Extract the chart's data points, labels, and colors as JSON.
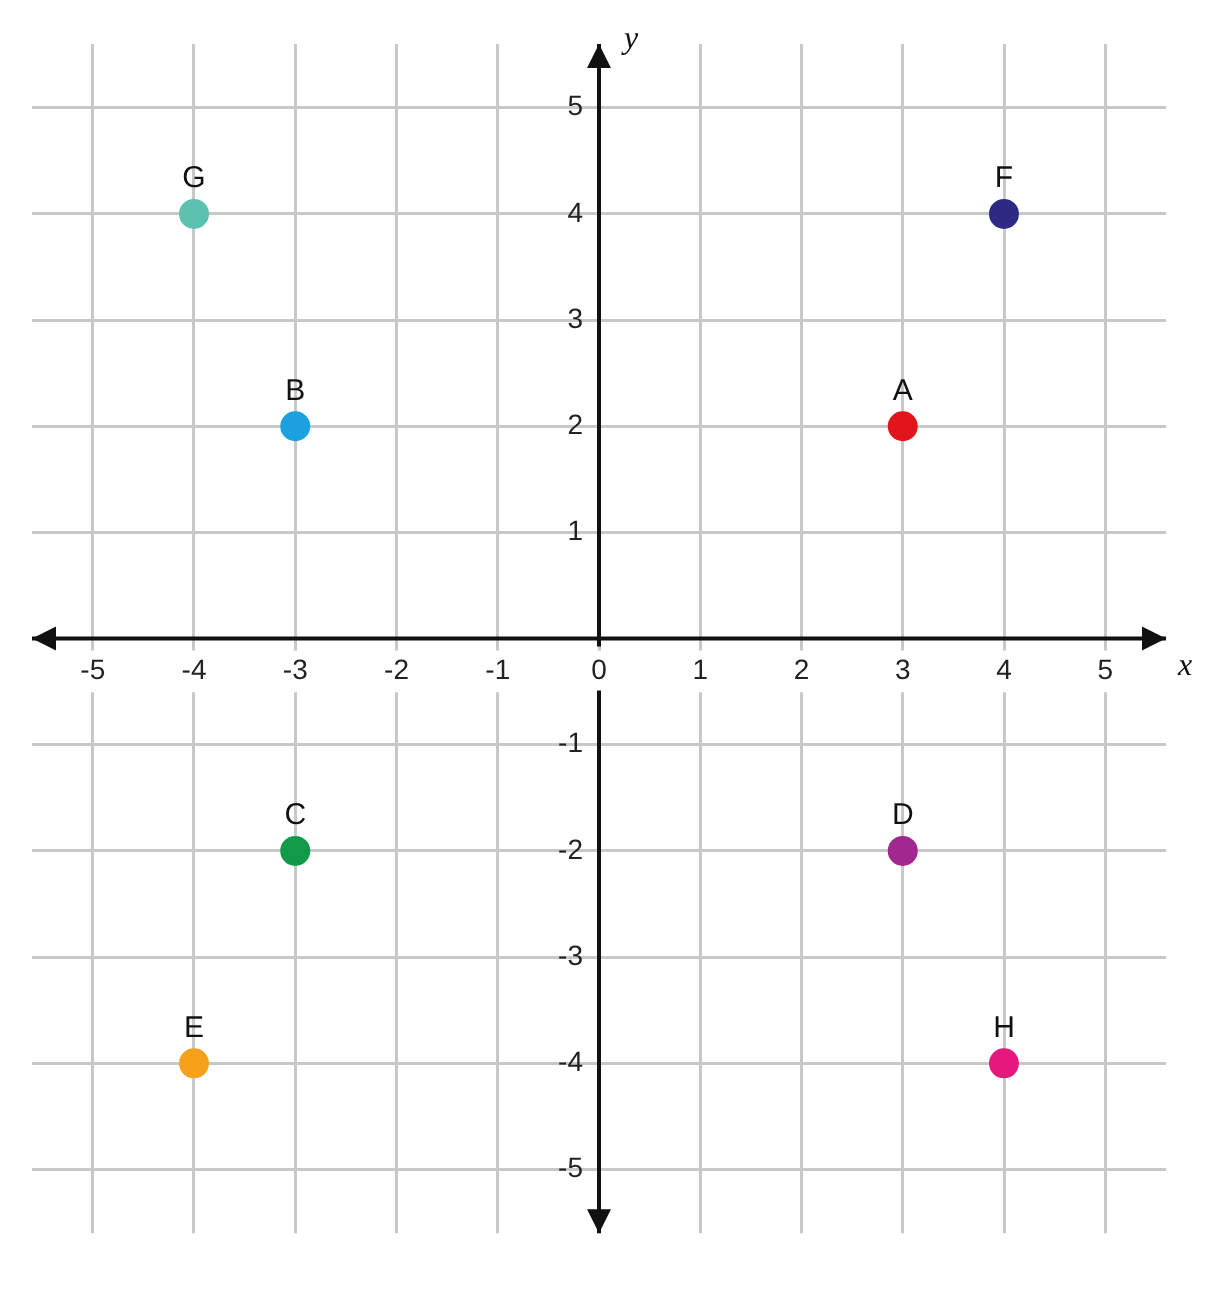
{
  "chart_data": {
    "type": "scatter",
    "xlabel": "x",
    "ylabel": "y",
    "x": [
      3,
      -3,
      -3,
      3,
      -4,
      4,
      -4,
      4
    ],
    "values": [
      2,
      2,
      -2,
      -2,
      -4,
      4,
      4,
      -4
    ],
    "colors": [
      "#e2141b",
      "#1ca0e0",
      "#119a48",
      "#a0288e",
      "#f7a11a",
      "#2e2a83",
      "#5cc2b0",
      "#e5187e"
    ],
    "xlim": [
      -5.6,
      5.6
    ],
    "ylim": [
      -5.6,
      5.6
    ],
    "xticks": [
      -5,
      -4,
      -3,
      -2,
      -1,
      0,
      1,
      2,
      3,
      4,
      5
    ],
    "yticks": [
      -5,
      -4,
      -3,
      -2,
      -1,
      {
        "value": 0,
        "label": null
      },
      1,
      2,
      3,
      4,
      5
    ],
    "grid": true,
    "marker": "circle",
    "annotations": [
      {
        "text": "A",
        "x": 3,
        "y": 2
      },
      {
        "text": "B",
        "x": -3,
        "y": 2
      },
      {
        "text": "C",
        "x": -3,
        "y": -2
      },
      {
        "text": "D",
        "x": 3,
        "y": -2
      },
      {
        "text": "E",
        "x": -4,
        "y": -4
      },
      {
        "text": "F",
        "x": 4,
        "y": 4
      },
      {
        "text": "G",
        "x": -4,
        "y": 4
      },
      {
        "text": "H",
        "x": 4,
        "y": -4
      }
    ]
  }
}
